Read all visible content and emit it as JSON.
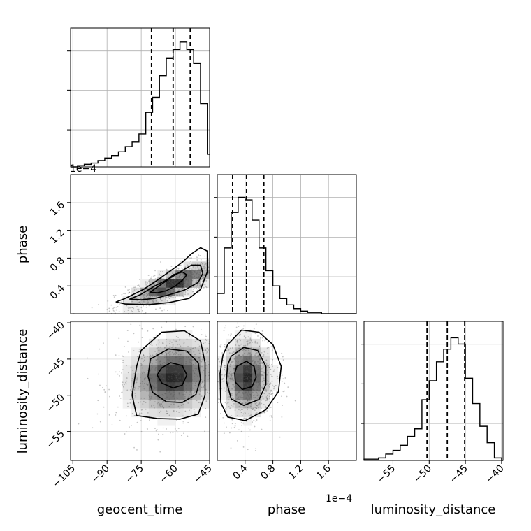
{
  "chart_data": {
    "type": "corner",
    "parameters": [
      {
        "name": "geocent_time",
        "label": "geocent_time",
        "range": [
          -106,
          -45
        ],
        "ticks": [
          -105,
          -90,
          -75,
          -60,
          -45
        ],
        "tick_labels": [
          "−105",
          "−90",
          "−75",
          "−60",
          "−45"
        ],
        "quantiles": [
          -70.5,
          -61,
          -53.5
        ],
        "hist_bins": [
          [
            -106,
            -103,
            0.0
          ],
          [
            -103,
            -100,
            0.01
          ],
          [
            -100,
            -97,
            0.02
          ],
          [
            -97,
            -94,
            0.03
          ],
          [
            -94,
            -91,
            0.05
          ],
          [
            -91,
            -88,
            0.07
          ],
          [
            -88,
            -85,
            0.09
          ],
          [
            -85,
            -82,
            0.12
          ],
          [
            -82,
            -79,
            0.16
          ],
          [
            -79,
            -76,
            0.2
          ],
          [
            -76,
            -73,
            0.26
          ],
          [
            -73,
            -70,
            0.43
          ],
          [
            -70,
            -67,
            0.55
          ],
          [
            -67,
            -64,
            0.72
          ],
          [
            -64,
            -61,
            0.86
          ],
          [
            -61,
            -58,
            0.93
          ],
          [
            -58,
            -55,
            0.99
          ],
          [
            -55,
            -52,
            0.93
          ],
          [
            -52,
            -49,
            0.82
          ],
          [
            -49,
            -46,
            0.5
          ],
          [
            -46,
            -45,
            0.1
          ]
        ]
      },
      {
        "name": "phase",
        "label": "phase",
        "offset_label": "1e−4",
        "range": [
          0.0,
          2.0
        ],
        "ticks": [
          0.4,
          0.8,
          1.2,
          1.6
        ],
        "tick_labels": [
          "0.4",
          "0.8",
          "1.2",
          "1.6"
        ],
        "quantiles": [
          0.22,
          0.42,
          0.67
        ],
        "hist_bins": [
          [
            0.0,
            0.1,
            0.16
          ],
          [
            0.1,
            0.2,
            0.52
          ],
          [
            0.2,
            0.3,
            0.8
          ],
          [
            0.3,
            0.4,
            0.92
          ],
          [
            0.4,
            0.5,
            0.9
          ],
          [
            0.5,
            0.6,
            0.74
          ],
          [
            0.6,
            0.7,
            0.52
          ],
          [
            0.7,
            0.8,
            0.34
          ],
          [
            0.8,
            0.9,
            0.22
          ],
          [
            0.9,
            1.0,
            0.12
          ],
          [
            1.0,
            1.1,
            0.07
          ],
          [
            1.1,
            1.2,
            0.04
          ],
          [
            1.2,
            1.3,
            0.02
          ],
          [
            1.3,
            1.5,
            0.01
          ],
          [
            1.5,
            2.0,
            0.0
          ]
        ]
      },
      {
        "name": "luminosity_distance",
        "label": "luminosity_distance",
        "range": [
          -59,
          -39.8
        ],
        "ticks": [
          -55,
          -50,
          -45,
          -40
        ],
        "tick_labels": [
          "−55",
          "−50",
          "−45",
          "−40"
        ],
        "quantiles": [
          -50.3,
          -47.5,
          -45.1
        ],
        "hist_bins": [
          [
            -59.0,
            -57.0,
            0.01
          ],
          [
            -57.0,
            -56.0,
            0.02
          ],
          [
            -56.0,
            -55.0,
            0.05
          ],
          [
            -55.0,
            -54.0,
            0.08
          ],
          [
            -54.0,
            -53.0,
            0.12
          ],
          [
            -53.0,
            -52.0,
            0.19
          ],
          [
            -52.0,
            -51.0,
            0.25
          ],
          [
            -51.0,
            -50.0,
            0.48
          ],
          [
            -50.0,
            -49.0,
            0.63
          ],
          [
            -49.0,
            -48.0,
            0.78
          ],
          [
            -48.0,
            -47.0,
            0.88
          ],
          [
            -47.0,
            -46.0,
            0.97
          ],
          [
            -46.0,
            -45.0,
            0.92
          ],
          [
            -45.0,
            -44.0,
            0.65
          ],
          [
            -44.0,
            -43.0,
            0.45
          ],
          [
            -43.0,
            -42.0,
            0.27
          ],
          [
            -42.0,
            -41.0,
            0.14
          ],
          [
            -41.0,
            -40.0,
            0.02
          ],
          [
            -40.0,
            -39.8,
            0.0
          ]
        ]
      }
    ],
    "pairs": [
      {
        "x": "geocent_time",
        "y": "phase",
        "center": [
          -61,
          0.42
        ],
        "spread": [
          10,
          0.16
        ],
        "correlation": 0.8,
        "contours": [
          {
            "level": 0.5,
            "points": [
              [
                -68,
                0.3
              ],
              [
                -64,
                0.33
              ],
              [
                -60,
                0.4
              ],
              [
                -57,
                0.48
              ],
              [
                -55,
                0.56
              ],
              [
                -57,
                0.6
              ],
              [
                -61,
                0.56
              ],
              [
                -64,
                0.47
              ],
              [
                -69,
                0.36
              ],
              [
                -71,
                0.31
              ],
              [
                -68,
                0.3
              ]
            ]
          },
          {
            "level": 1.0,
            "points": [
              [
                -75,
                0.2
              ],
              [
                -69,
                0.22
              ],
              [
                -63,
                0.27
              ],
              [
                -56,
                0.34
              ],
              [
                -50,
                0.45
              ],
              [
                -48,
                0.58
              ],
              [
                -49,
                0.7
              ],
              [
                -53,
                0.7
              ],
              [
                -58,
                0.6
              ],
              [
                -63,
                0.5
              ],
              [
                -69,
                0.4
              ],
              [
                -75,
                0.28
              ],
              [
                -80,
                0.21
              ],
              [
                -75,
                0.2
              ]
            ]
          },
          {
            "level": 1.5,
            "points": [
              [
                -82,
                0.14
              ],
              [
                -72,
                0.13
              ],
              [
                -63,
                0.16
              ],
              [
                -54,
                0.22
              ],
              [
                -49,
                0.35
              ],
              [
                -46,
                0.6
              ],
              [
                -46,
                0.9
              ],
              [
                -49,
                0.95
              ],
              [
                -53,
                0.86
              ],
              [
                -57,
                0.74
              ],
              [
                -62,
                0.62
              ],
              [
                -68,
                0.48
              ],
              [
                -74,
                0.35
              ],
              [
                -82,
                0.22
              ],
              [
                -86,
                0.17
              ],
              [
                -82,
                0.14
              ]
            ]
          }
        ]
      },
      {
        "x": "geocent_time",
        "y": "luminosity_distance",
        "center": [
          -61,
          -47.5
        ],
        "spread": [
          10,
          2.6
        ],
        "correlation": 0.15,
        "contours": [
          {
            "level": 0.5,
            "points": [
              [
                -66,
                -46.2
              ],
              [
                -62,
                -45.5
              ],
              [
                -57,
                -45.9
              ],
              [
                -55,
                -47.2
              ],
              [
                -57,
                -48.6
              ],
              [
                -61,
                -49.0
              ],
              [
                -66,
                -48.3
              ],
              [
                -68,
                -47.2
              ],
              [
                -66,
                -46.2
              ]
            ]
          },
          {
            "level": 1.0,
            "points": [
              [
                -71,
                -45.0
              ],
              [
                -63,
                -43.6
              ],
              [
                -55,
                -43.9
              ],
              [
                -50,
                -45.5
              ],
              [
                -49,
                -47.8
              ],
              [
                -51,
                -49.9
              ],
              [
                -57,
                -51.0
              ],
              [
                -64,
                -50.9
              ],
              [
                -70,
                -49.6
              ],
              [
                -72,
                -47.4
              ],
              [
                -71,
                -45.0
              ]
            ]
          },
          {
            "level": 1.5,
            "points": [
              [
                -75,
                -43.8
              ],
              [
                -66,
                -41.3
              ],
              [
                -56,
                -41.1
              ],
              [
                -49,
                -42.5
              ],
              [
                -47,
                -45.5
              ],
              [
                -47,
                -50.0
              ],
              [
                -50,
                -52.6
              ],
              [
                -58,
                -53.3
              ],
              [
                -68,
                -53.2
              ],
              [
                -77,
                -52.8
              ],
              [
                -79,
                -50.0
              ],
              [
                -77,
                -46.0
              ],
              [
                -75,
                -43.8
              ]
            ]
          }
        ]
      },
      {
        "x": "phase",
        "y": "luminosity_distance",
        "center": [
          0.42,
          -47.5
        ],
        "spread": [
          0.17,
          2.6
        ],
        "correlation": 0.0,
        "contours": [
          {
            "level": 0.5,
            "points": [
              [
                0.28,
                -46.0
              ],
              [
                0.42,
                -45.3
              ],
              [
                0.53,
                -46.0
              ],
              [
                0.56,
                -47.5
              ],
              [
                0.5,
                -48.8
              ],
              [
                0.36,
                -49.2
              ],
              [
                0.26,
                -48.2
              ],
              [
                0.25,
                -47.0
              ],
              [
                0.28,
                -46.0
              ]
            ]
          },
          {
            "level": 1.0,
            "points": [
              [
                0.2,
                -44.6
              ],
              [
                0.38,
                -43.4
              ],
              [
                0.58,
                -43.8
              ],
              [
                0.7,
                -46.0
              ],
              [
                0.7,
                -48.5
              ],
              [
                0.6,
                -50.6
              ],
              [
                0.38,
                -51.4
              ],
              [
                0.2,
                -50.5
              ],
              [
                0.13,
                -48.0
              ],
              [
                0.15,
                -45.8
              ],
              [
                0.2,
                -44.6
              ]
            ]
          },
          {
            "level": 1.5,
            "points": [
              [
                0.15,
                -43.0
              ],
              [
                0.35,
                -41.0
              ],
              [
                0.6,
                -41.3
              ],
              [
                0.8,
                -43.0
              ],
              [
                0.92,
                -46.0
              ],
              [
                0.88,
                -49.5
              ],
              [
                0.7,
                -52.0
              ],
              [
                0.4,
                -53.5
              ],
              [
                0.15,
                -53.0
              ],
              [
                0.05,
                -51.0
              ],
              [
                0.04,
                -47.0
              ],
              [
                0.08,
                -44.5
              ],
              [
                0.15,
                -43.0
              ]
            ]
          }
        ]
      }
    ],
    "grid": true
  }
}
